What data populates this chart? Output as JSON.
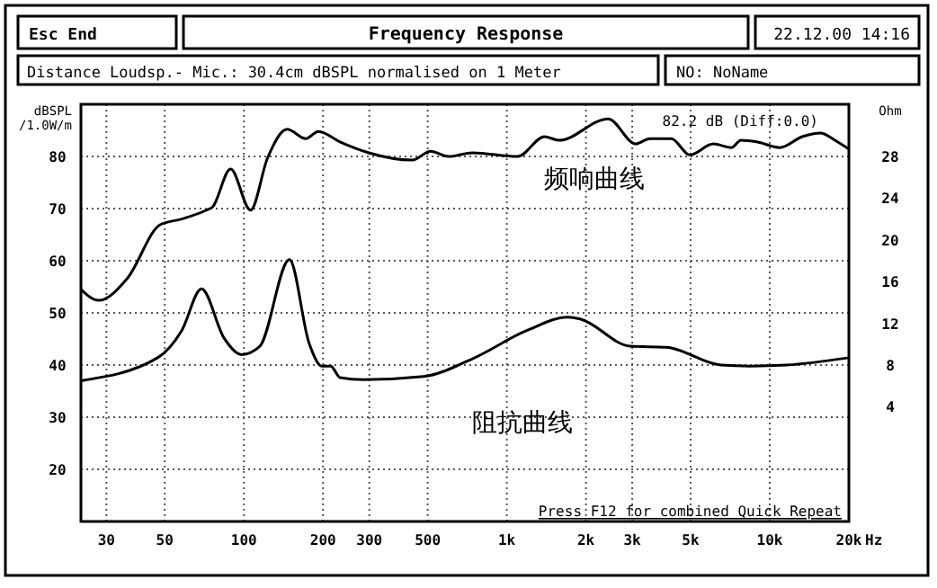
{
  "chart_data": {
    "type": "line",
    "title": "Frequency Response",
    "subtitle": "Distance Loudsp.- Mic.: 30.4cm dBSPL normalised on 1 Meter",
    "ylabel": "dBSPL /1.0W/m",
    "y2label": "Ohm",
    "annotations": [
      "Esc End",
      "22.12.00 14:16",
      "NO: NoName",
      "82.2 dB (Diff:0.0)",
      "Press F12 for combined Quick Repeat"
    ],
    "log": "x",
    "grid": true,
    "marker": "none",
    "line_style": "solid",
    "xlim": [
      24,
      20000
    ],
    "xticks": [
      30,
      50,
      100,
      200,
      300,
      500,
      {
        "value": 1000,
        "label": "1k"
      },
      {
        "value": 2000,
        "label": "2k"
      },
      {
        "value": 3000,
        "label": "3k"
      },
      {
        "value": 5000,
        "label": "5k"
      },
      {
        "value": 10000,
        "label": "10k"
      },
      {
        "value": 20000,
        "label": "20k"
      }
    ],
    "xlabel": "Hz",
    "ylim": [
      10,
      90
    ],
    "yticks": [
      20,
      30,
      40,
      50,
      60,
      70,
      80
    ],
    "y2lim": [
      -7,
      33
    ],
    "y2ticks": [
      4,
      8,
      12,
      16,
      20,
      24,
      28
    ],
    "series": [
      {
        "name": "频响曲线",
        "color": "#000000",
        "x": [
          24,
          28,
          36,
          48,
          58,
          72,
          76,
          89,
          106,
          123,
          146,
          172,
          192,
          232,
          299,
          437,
          513,
          600,
          740,
          1100,
          1390,
          1580,
          2430,
          3090,
          3500,
          4220,
          4970,
          6100,
          7160,
          7770,
          8930,
          10900,
          13300,
          15600,
          17700,
          20000
        ],
        "values": [
          54.5,
          52.4,
          56.6,
          66.9,
          68,
          69.7,
          70.3,
          77.6,
          69.7,
          79.7,
          85.2,
          83.4,
          84.8,
          82.8,
          80.7,
          79.3,
          81,
          80,
          80.7,
          80,
          83.8,
          83.1,
          87.2,
          82.4,
          83.4,
          83.4,
          80.3,
          82.4,
          81.7,
          83.1,
          82.8,
          81.7,
          83.8,
          84.5,
          83.1,
          81.4
        ]
      },
      {
        "name": "阻抗曲线",
        "color": "#000000",
        "axis": "y2",
        "x": [
          24,
          47,
          58,
          69,
          84,
          98,
          115,
          149,
          177,
          198,
          214,
          232,
          285,
          482,
          740,
          1190,
          1710,
          1910,
          2950,
          4040,
          6520,
          8400,
          11600,
          20000
        ],
        "values": [
          6.5,
          8.7,
          11.3,
          15.3,
          10.6,
          9,
          9.8,
          18.1,
          10.1,
          7.9,
          7.9,
          6.8,
          6.6,
          6.9,
          8.6,
          11.3,
          12.6,
          12.4,
          9.8,
          9.7,
          8,
          7.9,
          8,
          8.7
        ]
      }
    ]
  }
}
